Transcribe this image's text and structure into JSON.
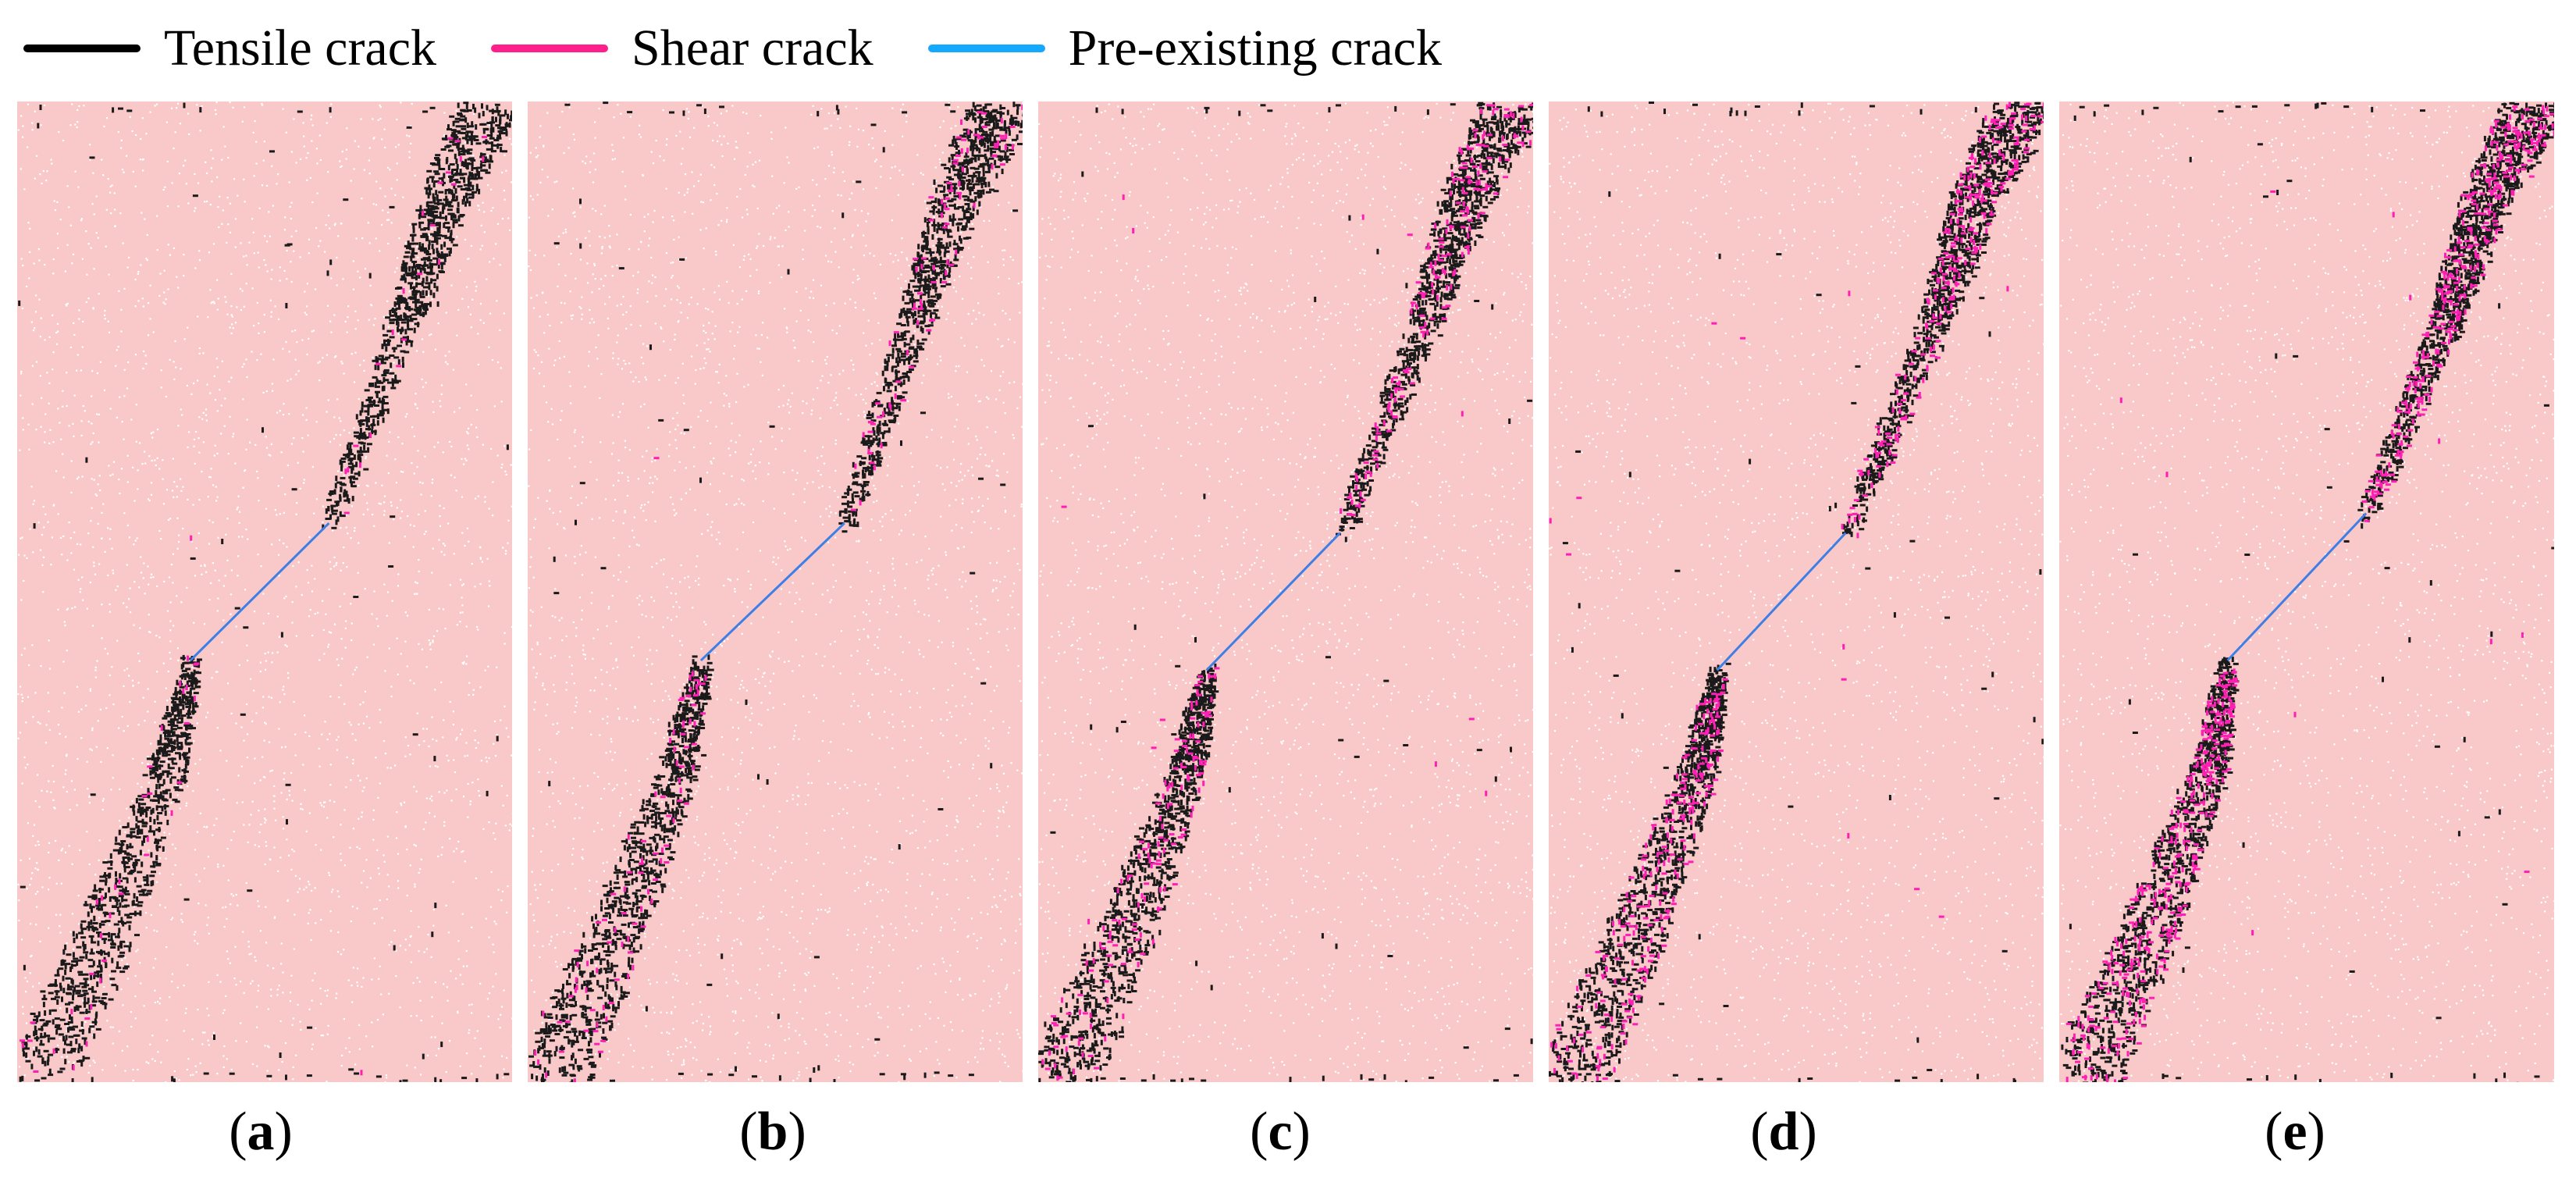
{
  "legend": {
    "items": [
      {
        "label": "Tensile crack",
        "color": "#000000"
      },
      {
        "label": "Shear crack",
        "color": "#ff1f8c"
      },
      {
        "label": "Pre-existing crack",
        "color": "#14a8ff"
      }
    ]
  },
  "colors": {
    "specimen_fill": "#f9c9c9",
    "particle_gap": "#ffffff",
    "tensile": "#1a1a1a",
    "shear": "#ff1fb4",
    "preexisting_flaw": "#3e7fe6"
  },
  "panels": [
    {
      "id": "a",
      "label_open": "(",
      "label_letter": "a",
      "label_close": ")"
    },
    {
      "id": "b",
      "label_open": "(",
      "label_letter": "b",
      "label_close": ")"
    },
    {
      "id": "c",
      "label_open": "(",
      "label_letter": "c",
      "label_close": ")"
    },
    {
      "id": "d",
      "label_open": "(",
      "label_letter": "d",
      "label_close": ")"
    },
    {
      "id": "e",
      "label_open": "(",
      "label_letter": "e",
      "label_close": ")"
    }
  ]
}
